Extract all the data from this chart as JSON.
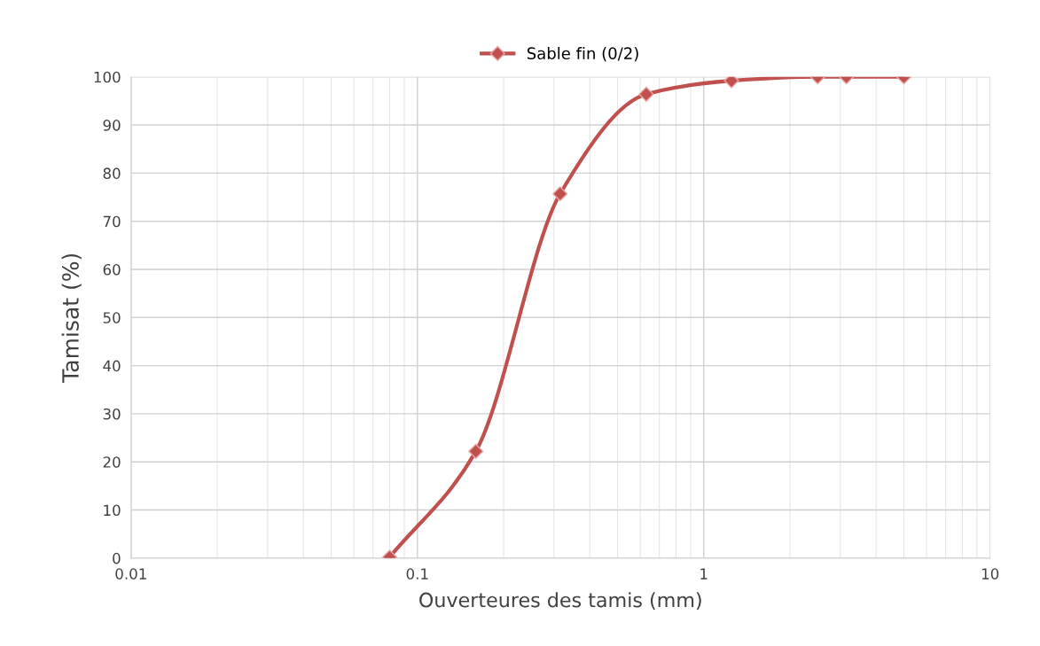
{
  "chart_data": {
    "type": "line",
    "xlabel": "Ouverteures des tamis (mm)",
    "ylabel": "Tamisat (%)",
    "log": "x",
    "xlim": [
      0.01,
      10
    ],
    "xticks": [
      0.01,
      0.1,
      1,
      10
    ],
    "ylim": [
      0,
      100
    ],
    "yticks": [
      0,
      10,
      20,
      30,
      40,
      50,
      60,
      70,
      80,
      90,
      100
    ],
    "grid": true,
    "legend": "top",
    "marker": "diamond",
    "line_style": "solid",
    "series": [
      {
        "name": "Sable fin (0/2)",
        "color": "#c0504d",
        "x": [
          0.08,
          0.16,
          0.315,
          0.63,
          1.25,
          2.5,
          3.15,
          5
        ],
        "values": [
          0.2,
          22.2,
          75.7,
          96.4,
          99.2,
          100,
          100,
          100
        ]
      }
    ]
  }
}
